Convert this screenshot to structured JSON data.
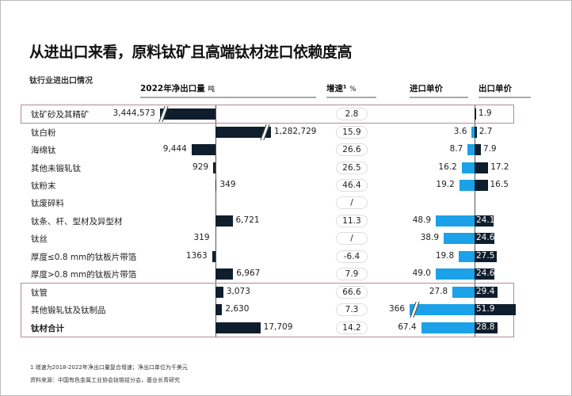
{
  "title": "从进出口来看，原料钛矿且高端钛材进口依赖度高",
  "subtitle": "钛行业进出口情况",
  "headers": {
    "export": "2022年净出口量",
    "export_unit": "吨",
    "growth": "增速¹",
    "growth_unit": "%",
    "import_price": "进口单价",
    "export_price": "出口单价"
  },
  "chart_data": {
    "type": "table",
    "categories": [
      "钛矿砂及其精矿",
      "钛白粉",
      "海绵钛",
      "其他未锻轧钛",
      "钛粉末",
      "钛废碎料",
      "钛条、杆、型材及异型材",
      "钛丝",
      "厚度≤0.8 mm的钛板片带箔",
      "厚度>0.8 mm的钛板片带箔",
      "钛管",
      "其他锻轧钛及钛制品",
      "钛材合计"
    ],
    "net_export_tons": [
      -3444573,
      1282729,
      -9444,
      -929,
      349,
      null,
      6721,
      -319,
      -1363,
      6967,
      3073,
      2630,
      17709
    ],
    "net_export_labels": [
      "3,444,573",
      "1,282,729",
      "9,444",
      "929",
      "349",
      "",
      "6,721",
      "319",
      "1363",
      "6,967",
      "3,073",
      "2,630",
      "17,709"
    ],
    "growth_pct": [
      "2.8",
      "15.9",
      "26.6",
      "26.5",
      "46.4",
      "/",
      "11.3",
      "/",
      "-6.4",
      "7.9",
      "66.6",
      "7.3",
      "14.2"
    ],
    "import_price": [
      null,
      3.6,
      8.7,
      16.2,
      19.2,
      null,
      48.9,
      38.9,
      19.8,
      49.0,
      27.8,
      366,
      67.4
    ],
    "import_price_labels": [
      "",
      "3.6",
      "8.7",
      "16.2",
      "19.2",
      "",
      "48.9",
      "38.9",
      "19.8",
      "49.0",
      "27.8",
      "366",
      "67.4"
    ],
    "export_price": [
      1.9,
      2.7,
      7.9,
      17.2,
      16.5,
      null,
      24.1,
      24.6,
      27.5,
      24.6,
      29.4,
      51.9,
      28.8
    ],
    "export_price_labels": [
      "1.9",
      "2.7",
      "7.9",
      "17.2",
      "16.5",
      "",
      "24.1",
      "24.6",
      "27.5",
      "24.6",
      "29.4",
      "51.9",
      "28.8"
    ],
    "highlighted_rows": [
      [
        0
      ],
      [
        10,
        11,
        12
      ]
    ],
    "bold_rows": [
      12
    ],
    "broken_bars": {
      "net_export": [
        0,
        1
      ],
      "import_price": [
        11
      ]
    },
    "colors": {
      "export_bar": "#0f1e2c",
      "import_bar": "#1aa1e8",
      "highlight_box": "#b48a95"
    }
  },
  "footnotes": [
    "1 增速为2018-2022年净出口量复合增速；净出口单位为千美元",
    "资料来源：中国有色金属工业协会钛锆铪分会，基业长青研究"
  ]
}
